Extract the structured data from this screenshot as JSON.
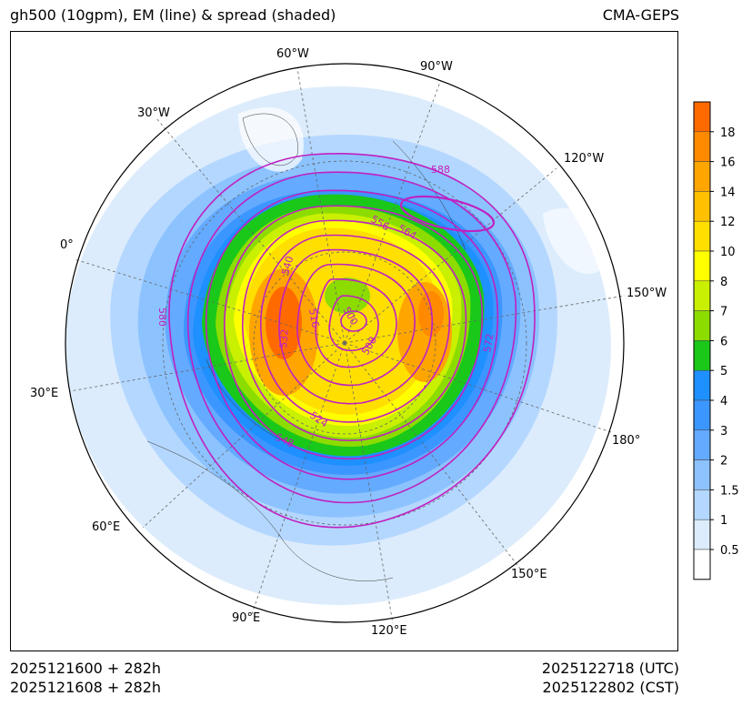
{
  "header": {
    "title": "gh500 (10gpm), EM (line) & spread (shaded)",
    "model": "CMA-GEPS"
  },
  "footer": {
    "init_utc": "2025121600 + 282h",
    "init_cst": "2025121608 + 282h",
    "valid_utc": "2025122718 (UTC)",
    "valid_cst": "2025122802 (CST)"
  },
  "map": {
    "projection": "north polar stereographic",
    "longitude_labels": [
      "60°W",
      "90°W",
      "30°W",
      "120°W",
      "0°",
      "150°W",
      "30°E",
      "180°",
      "60°E",
      "150°E",
      "90°E",
      "120°E"
    ],
    "contour_labels": [
      "588",
      "556",
      "564",
      "540",
      "580",
      "516",
      "500",
      "532",
      "508",
      "572",
      "524",
      "548"
    ],
    "contour_color": "#c020c0"
  },
  "colorbar": {
    "labels": [
      "18",
      "16",
      "14",
      "12",
      "10",
      "8",
      "7",
      "6",
      "5",
      "4",
      "3",
      "2",
      "1.5",
      "1",
      "0.5"
    ],
    "colors": [
      "#ff6a00",
      "#ff8a00",
      "#ffa500",
      "#ffc000",
      "#ffdf00",
      "#ffff00",
      "#c8f000",
      "#8cdc00",
      "#19c819",
      "#1e90ff",
      "#3c96ff",
      "#64aaff",
      "#8cc3ff",
      "#b4d7ff",
      "#dcecfc",
      "#ffffff"
    ]
  }
}
